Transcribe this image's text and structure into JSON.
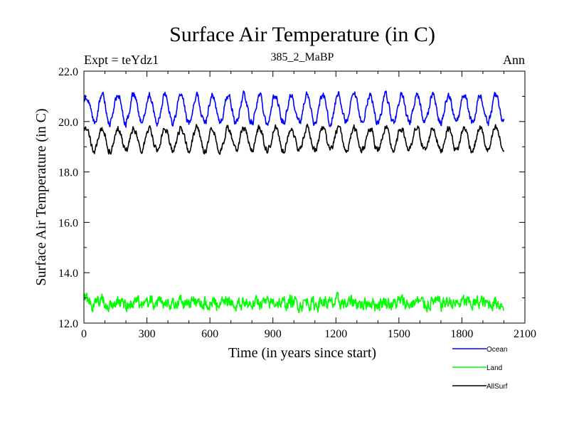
{
  "chart_data": {
    "type": "line",
    "title": "Surface Air Temperature (in C)",
    "subtitle": "385_2_MaBP",
    "left_label": "Expt = teYdz1",
    "right_label": "Ann",
    "xlabel": "Time (in years since start)",
    "ylabel": "Surface Air Temperature (in C)",
    "xlim": [
      0,
      2100
    ],
    "ylim": [
      12,
      22
    ],
    "xticks": [
      0,
      300,
      600,
      900,
      1200,
      1500,
      1800,
      2100
    ],
    "xtick_labels": [
      "0",
      "300",
      "600",
      "900",
      "1200",
      "1500",
      "1800",
      "2100"
    ],
    "yticks": [
      12,
      14,
      16,
      18,
      20,
      22
    ],
    "ytick_labels": [
      "12.0",
      "14.0",
      "16.0",
      "18.0",
      "20.0",
      "22.0"
    ],
    "legend_position": "bottom-right, outside plot",
    "series": [
      {
        "name": "Ocean",
        "color": "#0000ff",
        "x_start": 0,
        "x_end": 2000,
        "mean": 20.5,
        "cycle_amplitude": 0.55,
        "cycle_period_years": 75,
        "noise": 0.12
      },
      {
        "name": "Land",
        "color": "#00ff00",
        "x_start": 0,
        "x_end": 2000,
        "mean": 12.8,
        "cycle_amplitude": 0.05,
        "cycle_period_years": 75,
        "noise": 0.22
      },
      {
        "name": "AllSurf",
        "color": "#000000",
        "x_start": 0,
        "x_end": 2000,
        "mean": 19.3,
        "cycle_amplitude": 0.45,
        "cycle_period_years": 75,
        "noise": 0.11
      }
    ]
  }
}
